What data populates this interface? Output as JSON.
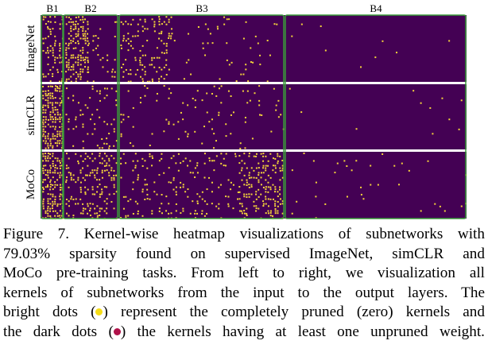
{
  "figure": {
    "block_labels": [
      "B1",
      "B2",
      "B3",
      "B4"
    ],
    "row_labels": [
      "ImageNet",
      "simCLR",
      "MoCo"
    ],
    "colors": {
      "background": "#440154",
      "dot": "#f4d43a",
      "block_border": "#3a9b3a",
      "row_separator": "#ffffff"
    }
  },
  "caption": {
    "line1": "Figure 7. Kernel-wise heatmap visualizations of subnetworks with",
    "line2": "79.03% sparsity found on supervised ImageNet, simCLR and",
    "line3": "MoCo pre-training tasks. From left to right, we visualization all",
    "line4": "kernels of subnetworks from the input to the output layers. The",
    "line5a": "bright dots (",
    "line5b": ") represent the completely pruned (zero) kernels and",
    "line6a": "the dark dots (",
    "line6b": ") the kernels having at least one unpruned weight."
  }
}
